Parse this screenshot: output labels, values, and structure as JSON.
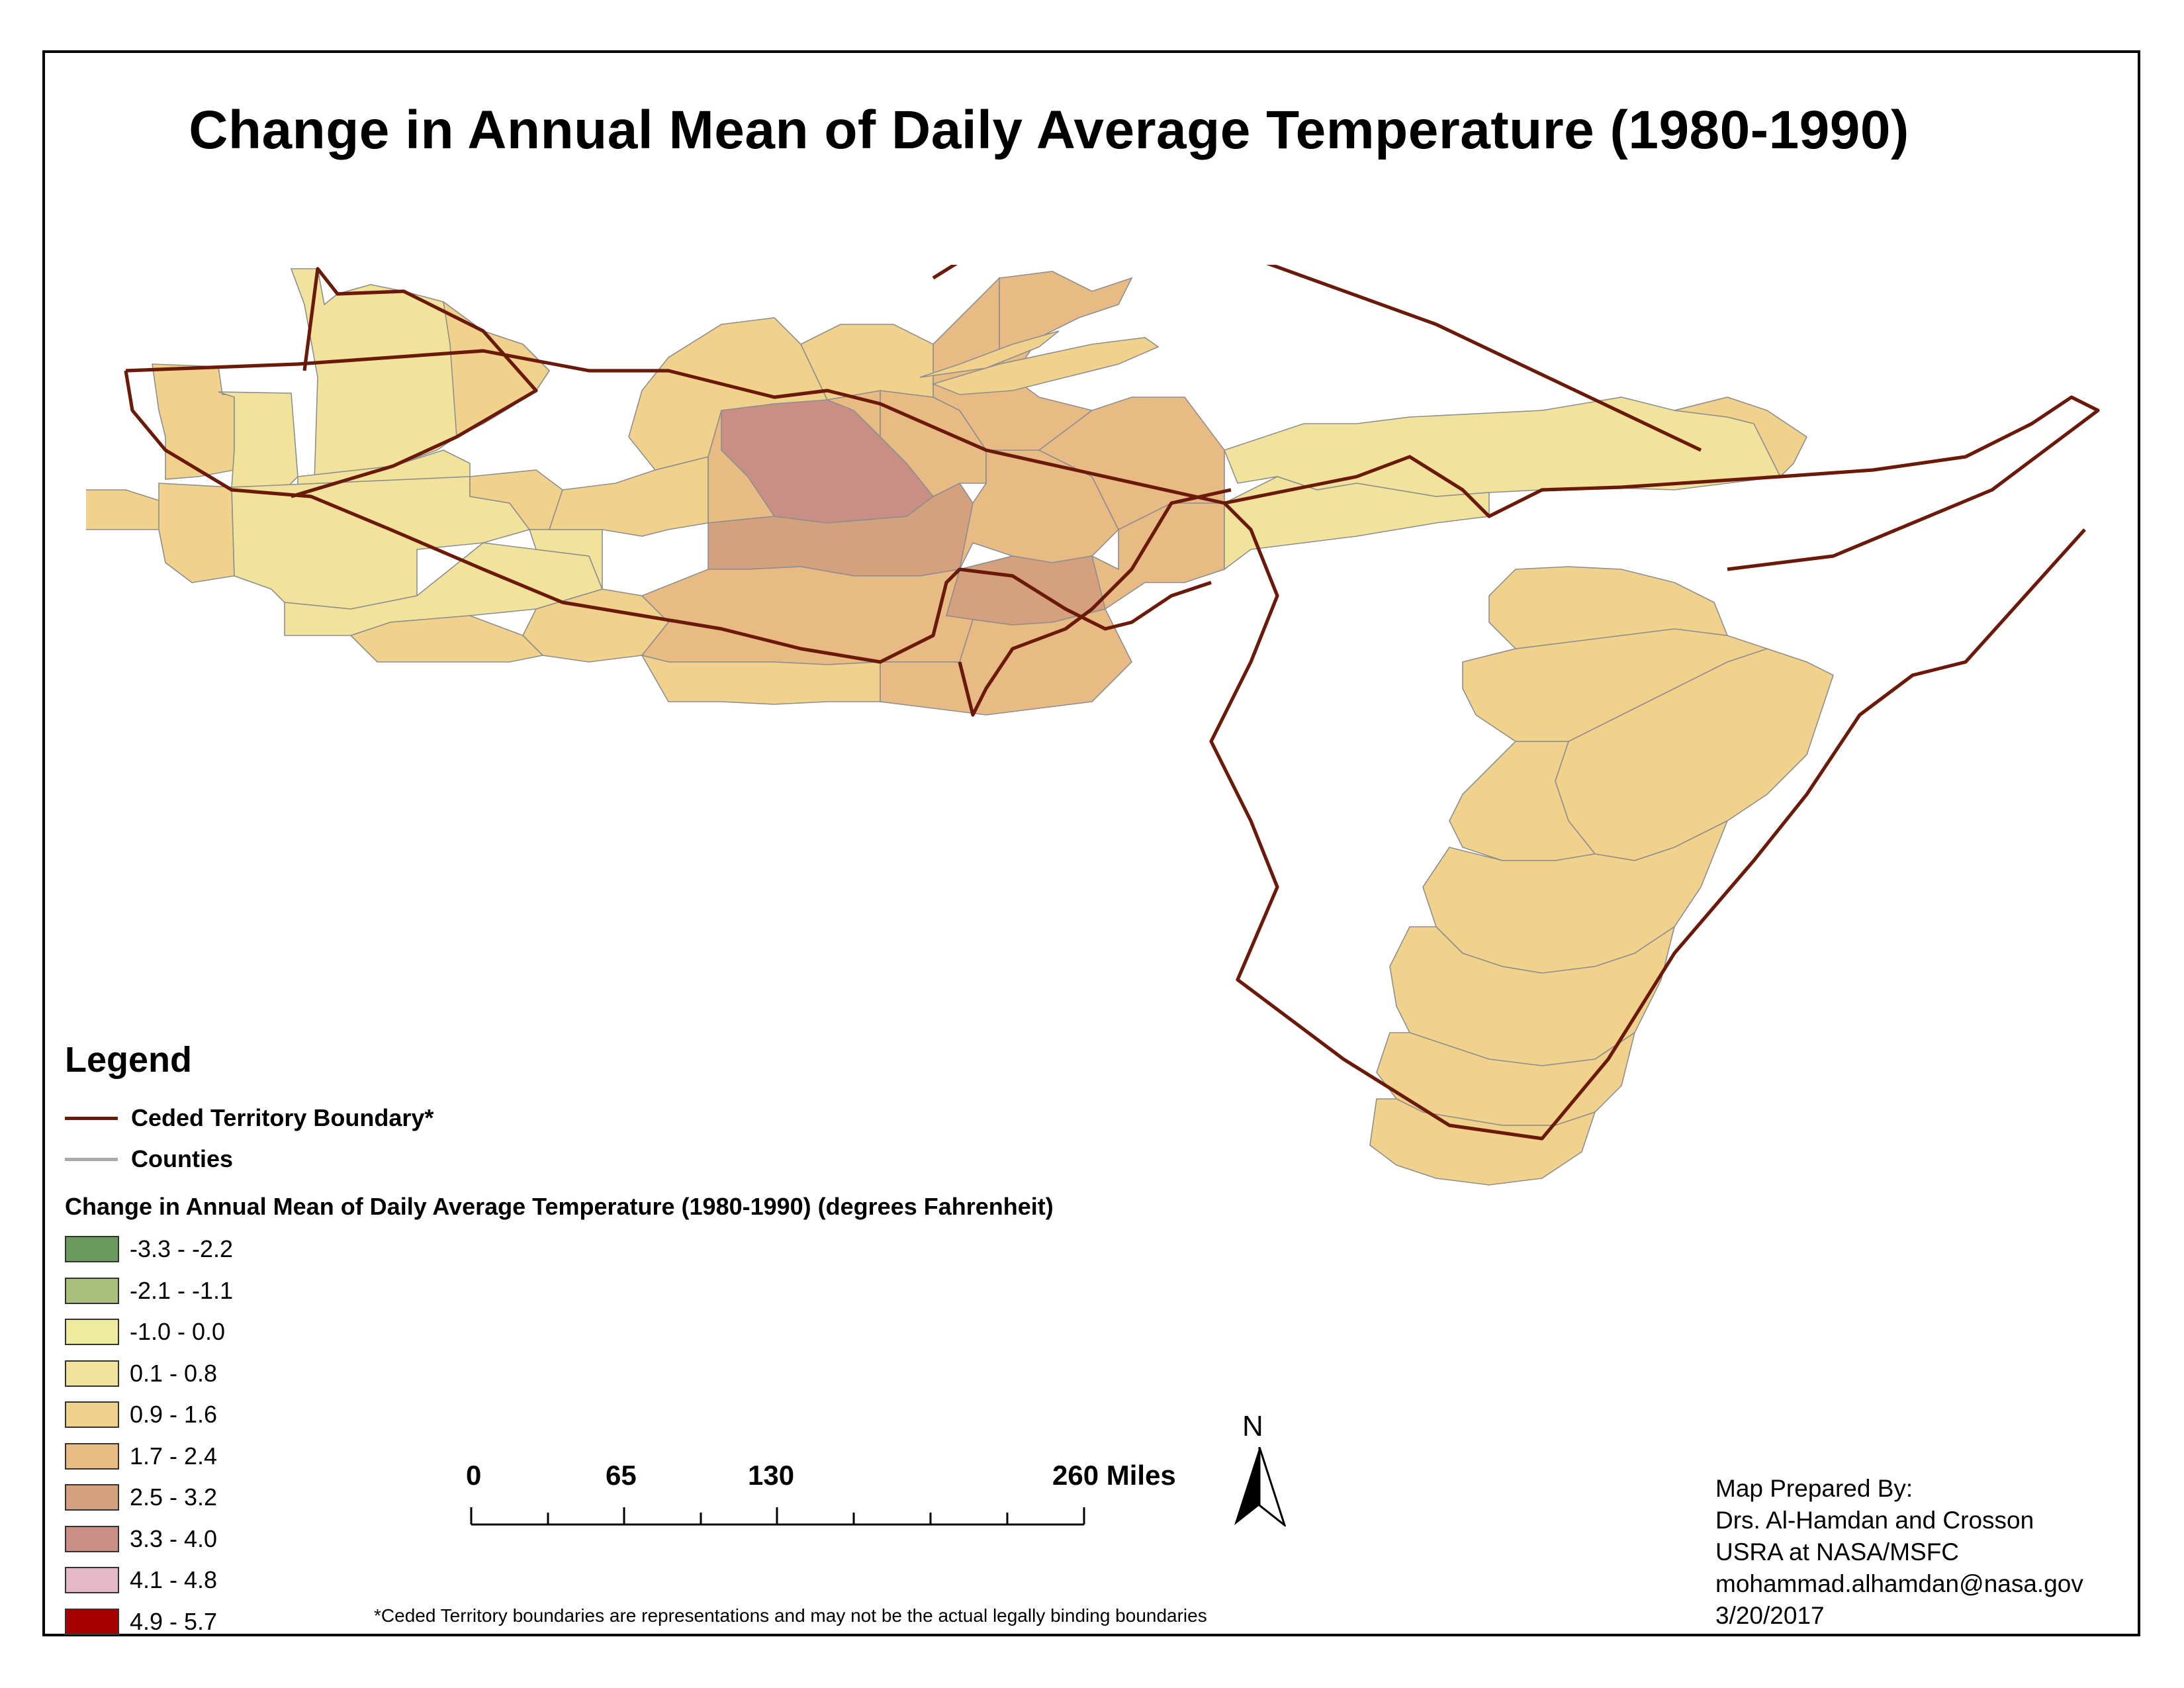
{
  "title": "Change in Annual Mean of Daily Average Temperature (1980-1990)",
  "legend": {
    "heading": "Legend",
    "boundary_label": "Ceded Territory Boundary*",
    "counties_label": "Counties",
    "subtitle": "Change in Annual Mean of Daily Average Temperature (1980-1990) (degrees Fahrenheit)",
    "classes": [
      {
        "label": "-3.3 - -2.2",
        "color": "#6a9a5c"
      },
      {
        "label": "-2.1 - -1.1",
        "color": "#a9c07c"
      },
      {
        "label": "-1.0 - 0.0",
        "color": "#eeea9e"
      },
      {
        "label": "0.1 - 0.8",
        "color": "#f1e39c"
      },
      {
        "label": "0.9 - 1.6",
        "color": "#f0d28c"
      },
      {
        "label": "1.7 - 2.4",
        "color": "#e8bb84"
      },
      {
        "label": "2.5 - 3.2",
        "color": "#d4a07d"
      },
      {
        "label": "3.3 - 4.0",
        "color": "#c98f85"
      },
      {
        "label": "4.1 - 4.8",
        "color": "#e5b8c8"
      },
      {
        "label": "4.9 - 5.7",
        "color": "#a80000"
      }
    ]
  },
  "scale_bar": {
    "labels": [
      "0",
      "65",
      "130",
      "260 Miles"
    ]
  },
  "north_arrow": {
    "label": "N"
  },
  "footnote": "*Ceded Territory boundaries are representations and may not be the actual legally binding boundaries",
  "credits": {
    "line1": "Map Prepared By:",
    "line2": "Drs. Al-Hamdan and Crosson",
    "line3": "USRA at NASA/MSFC",
    "line4": "mohammad.alhamdan@nasa.gov",
    "line5": "3/20/2017"
  },
  "colors": {
    "boundary": "#6b1a0a",
    "county_line": "#a8a8a8"
  }
}
